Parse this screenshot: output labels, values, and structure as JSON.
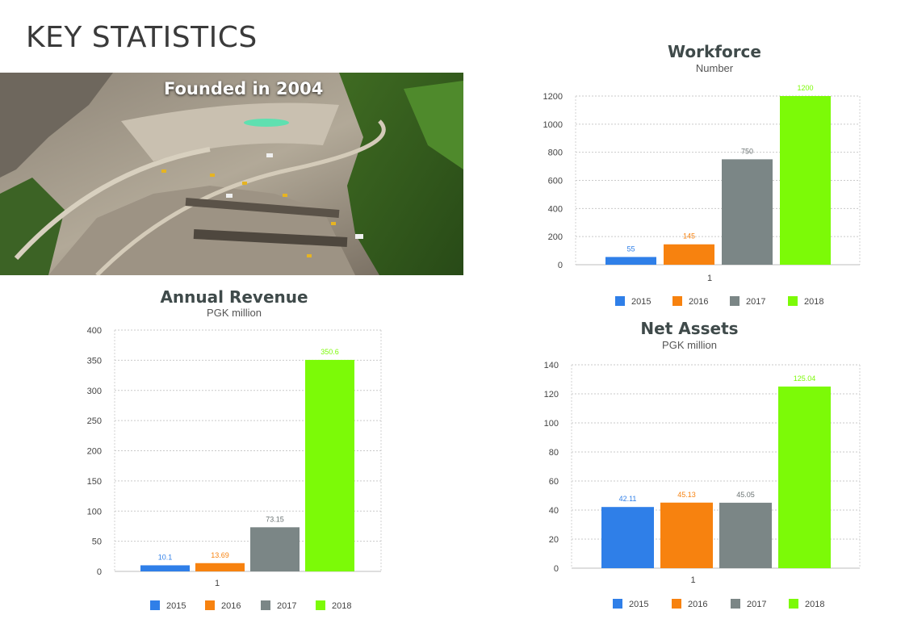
{
  "page": {
    "title": "KEY STATISTICS"
  },
  "photo": {
    "caption": "Founded in 2004"
  },
  "colors": {
    "2015": "#2f7fe8",
    "2016": "#f7820f",
    "2017": "#7b8686",
    "2018": "#7cfa07"
  },
  "chart_data": [
    {
      "id": "workforce",
      "type": "bar",
      "title": "Workforce",
      "subtitle": "Number",
      "categories": [
        "1"
      ],
      "series": [
        {
          "name": "2015",
          "values": [
            55
          ],
          "label": "55"
        },
        {
          "name": "2016",
          "values": [
            145
          ],
          "label": "145"
        },
        {
          "name": "2017",
          "values": [
            750
          ],
          "label": "750"
        },
        {
          "name": "2018",
          "values": [
            1200
          ],
          "label": "1200"
        }
      ],
      "ylim": [
        0,
        1200
      ],
      "yticks": [
        "0",
        "200",
        "400",
        "600",
        "800",
        "1000",
        "1200"
      ],
      "grid": true,
      "legend": "bottom"
    },
    {
      "id": "annual-revenue",
      "type": "bar",
      "title": "Annual Revenue",
      "subtitle": "PGK million",
      "categories": [
        "1"
      ],
      "series": [
        {
          "name": "2015",
          "values": [
            10.1
          ],
          "label": "10.1"
        },
        {
          "name": "2016",
          "values": [
            13.69
          ],
          "label": "13.69"
        },
        {
          "name": "2017",
          "values": [
            73.15
          ],
          "label": "73.15"
        },
        {
          "name": "2018",
          "values": [
            350.6
          ],
          "label": "350.6"
        }
      ],
      "ylim": [
        0,
        400
      ],
      "yticks": [
        "0",
        "50",
        "100",
        "150",
        "200",
        "250",
        "300",
        "350",
        "400"
      ],
      "grid": true,
      "legend": "bottom"
    },
    {
      "id": "net-assets",
      "type": "bar",
      "title": "Net Assets",
      "subtitle": "PGK million",
      "categories": [
        "1"
      ],
      "series": [
        {
          "name": "2015",
          "values": [
            42.11
          ],
          "label": "42.11"
        },
        {
          "name": "2016",
          "values": [
            45.13
          ],
          "label": "45.13"
        },
        {
          "name": "2017",
          "values": [
            45.05
          ],
          "label": "45.05"
        },
        {
          "name": "2018",
          "values": [
            125.04
          ],
          "label": "125.04"
        }
      ],
      "ylim": [
        0,
        140
      ],
      "yticks": [
        "0",
        "20",
        "40",
        "60",
        "80",
        "100",
        "120",
        "140"
      ],
      "grid": true,
      "legend": "bottom"
    }
  ]
}
